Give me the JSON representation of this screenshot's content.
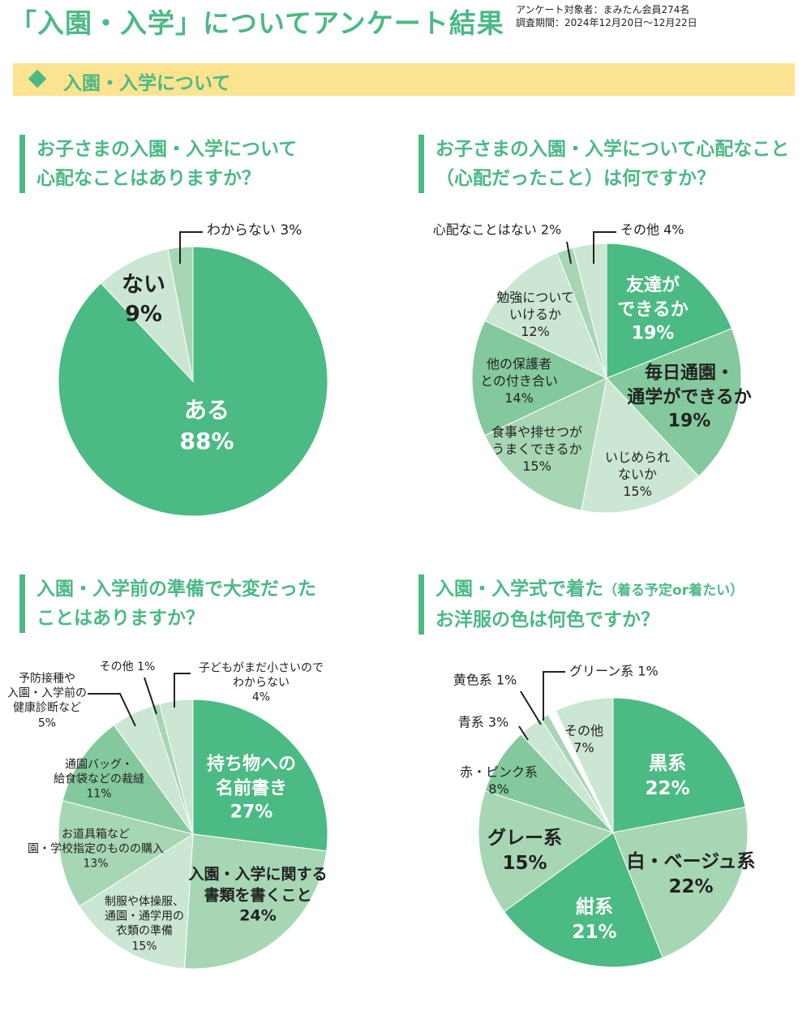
{
  "header": {
    "title": "「入園・入学」についてアンケート結果",
    "meta_target": "アンケート対象者：まみたん会員274名",
    "meta_period": "調査期間：2024年12月20日～12月22日"
  },
  "section": {
    "label": "入園・入学について"
  },
  "palette": {
    "dark": "#4cba84",
    "medium": "#84c99d",
    "light": "#a7d6b5",
    "lightest": "#cbe6d3",
    "white": "#ffffff",
    "title_green": "#4cb985",
    "band": "#fce38f"
  },
  "chart_data": [
    {
      "type": "pie",
      "title": [
        "お子さまの入園・入学について",
        "心配なことはありますか？"
      ],
      "slices": [
        {
          "label": "ある",
          "value": 88,
          "tone": "dark"
        },
        {
          "label": "ない",
          "value": 9,
          "tone": "lightest"
        },
        {
          "label": "わからない",
          "value": 3,
          "tone": "light"
        }
      ]
    },
    {
      "type": "pie",
      "title": [
        "お子さまの入園・入学について心配なこと",
        "（心配だったこと）は何ですか？"
      ],
      "slices": [
        {
          "label": "友達ができるか",
          "value": 19,
          "tone": "dark"
        },
        {
          "label": "毎日通園・通学ができるか",
          "value": 19,
          "tone": "medium"
        },
        {
          "label": "いじめられないか",
          "value": 15,
          "tone": "lightest"
        },
        {
          "label": "食事や排せつがうまくできるか",
          "value": 15,
          "tone": "light"
        },
        {
          "label": "他の保護者との付き合い",
          "value": 14,
          "tone": "medium"
        },
        {
          "label": "勉強についていけるか",
          "value": 12,
          "tone": "lightest"
        },
        {
          "label": "心配なことはない",
          "value": 2,
          "tone": "light"
        },
        {
          "label": "その他",
          "value": 4,
          "tone": "lightest"
        }
      ]
    },
    {
      "type": "pie",
      "title": [
        "入園・入学前の準備で大変だった",
        "ことはありますか？"
      ],
      "slices": [
        {
          "label": "持ち物への名前書き",
          "value": 27,
          "tone": "dark"
        },
        {
          "label": "入園・入学に関する書類を書くこと",
          "value": 24,
          "tone": "light"
        },
        {
          "label": "制服や体操服、通園・通学用の衣類の準備",
          "value": 15,
          "tone": "lightest"
        },
        {
          "label": "お道具箱など園・学校指定のものの購入",
          "value": 13,
          "tone": "light"
        },
        {
          "label": "通園バッグ・給食袋などの裁縫",
          "value": 11,
          "tone": "medium"
        },
        {
          "label": "予防接種や入園・入学前の健康診断など",
          "value": 5,
          "tone": "lightest"
        },
        {
          "label": "その他",
          "value": 1,
          "tone": "light"
        },
        {
          "label": "子どもがまだ小さいのでわからない",
          "value": 4,
          "tone": "lightest"
        }
      ]
    },
    {
      "type": "pie",
      "title": [
        "入園・入学式で着た",
        "（着る予定or着たい）",
        "お洋服の色は何色ですか？"
      ],
      "slices": [
        {
          "label": "黒系",
          "value": 22,
          "tone": "dark"
        },
        {
          "label": "白・ベージュ系",
          "value": 22,
          "tone": "light"
        },
        {
          "label": "紺系",
          "value": 21,
          "tone": "dark"
        },
        {
          "label": "グレー系",
          "value": 15,
          "tone": "light"
        },
        {
          "label": "赤・ピンク系",
          "value": 8,
          "tone": "medium"
        },
        {
          "label": "青系",
          "value": 3,
          "tone": "lightest"
        },
        {
          "label": "黄色系",
          "value": 1,
          "tone": "light"
        },
        {
          "label": "グリーン系",
          "value": 1,
          "tone": "white"
        },
        {
          "label": "その他",
          "value": 7,
          "tone": "lightest"
        }
      ]
    }
  ],
  "labels": {
    "c1": {
      "yes": [
        "ある",
        "88%"
      ],
      "no": [
        "ない",
        "9%"
      ],
      "unknown": "わからない 3%"
    },
    "c2": {
      "friends": [
        "友達が",
        "できるか",
        "19%"
      ],
      "commute": [
        "毎日通園・",
        "通学ができるか",
        "19%"
      ],
      "bully": [
        "いじめられ",
        "ないか",
        "15%"
      ],
      "meal": [
        "食事や排せつが",
        "うまくできるか",
        "15%"
      ],
      "parents": [
        "他の保護者",
        "との付き合い",
        "14%"
      ],
      "study": [
        "勉強について",
        "いけるか",
        "12%"
      ],
      "none": "心配なことはない 2%",
      "other": "その他 4%"
    },
    "c3": {
      "names": [
        "持ち物への",
        "名前書き",
        "27%"
      ],
      "docs": [
        "入園・入学に関する",
        "書類を書くこと",
        "24%"
      ],
      "clothes": [
        "制服や体操服、",
        "通園・通学用の",
        "衣類の準備",
        "15%"
      ],
      "tools": [
        "お道具箱など",
        "園・学校指定のものの購入",
        "13%"
      ],
      "bag": [
        "通園バッグ・",
        "給食袋などの裁縫",
        "11%"
      ],
      "vaccine": [
        "予防接種や",
        "入園・入学前の",
        "健康診断など",
        "5%"
      ],
      "other": "その他 1%",
      "small": [
        "子どもがまだ小さいので",
        "わからない",
        "4%"
      ]
    },
    "c4": {
      "black": [
        "黒系",
        "22%"
      ],
      "white": [
        "白・ベージュ系",
        "22%"
      ],
      "navy": [
        "紺系",
        "21%"
      ],
      "gray": [
        "グレー系",
        "15%"
      ],
      "red": [
        "赤・ピンク系",
        "8%"
      ],
      "blue": "青系 3%",
      "yellow": "黄色系 1%",
      "green": "グリーン系 1%",
      "other": [
        "その他",
        "7%"
      ]
    }
  }
}
